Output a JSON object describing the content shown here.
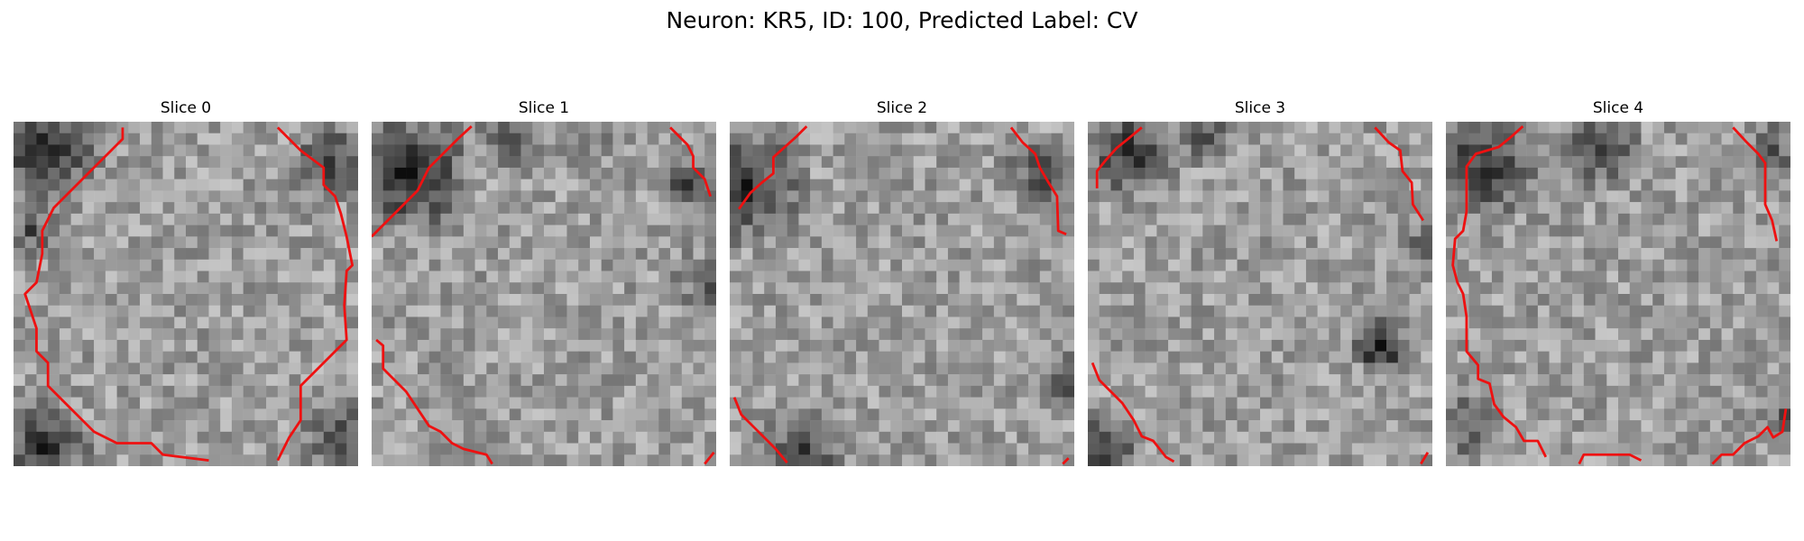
{
  "figure": {
    "title": "Neuron: KR5, ID: 100, Predicted Label: CV"
  },
  "colors": {
    "contour": "#ee1111",
    "background": "#ffffff"
  },
  "panels": [
    {
      "title": "Slice 0"
    },
    {
      "title": "Slice 1"
    },
    {
      "title": "Slice 2"
    },
    {
      "title": "Slice 3"
    },
    {
      "title": "Slice 4"
    }
  ]
}
